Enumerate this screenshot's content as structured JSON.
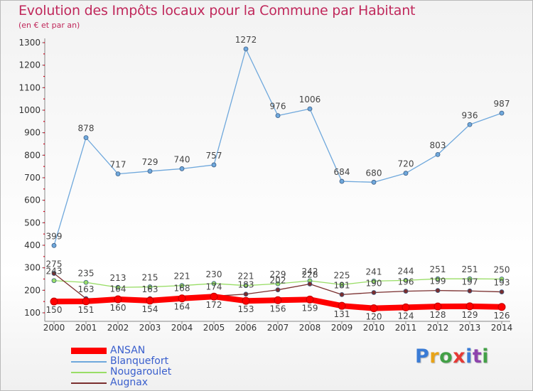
{
  "title": "Evolution des Impôts locaux pour la Commune par Habitant",
  "subtitle": "(en € et par an)",
  "logo": {
    "letters": [
      "P",
      "r",
      "o",
      "x",
      "i",
      "t",
      "i"
    ],
    "colors": [
      "#3a7bd5",
      "#e8a317",
      "#43a047",
      "#e53935",
      "#3a7bd5",
      "#8e44ad",
      "#43a047"
    ]
  },
  "chart_data": {
    "type": "line",
    "x": [
      "2000",
      "2001",
      "2002",
      "2003",
      "2004",
      "2005",
      "2006",
      "2007",
      "2008",
      "2009",
      "2010",
      "2011",
      "2012",
      "2013",
      "2014"
    ],
    "ylim": [
      100,
      1300
    ],
    "yticks": [
      "100",
      "200",
      "300",
      "400",
      "500",
      "600",
      "700",
      "800",
      "900",
      "1000",
      "1100",
      "1200",
      "1300"
    ],
    "grid": false,
    "legend_position": "bottom-left",
    "series": [
      {
        "name": "ANSAN",
        "color": "#ff0000",
        "values": [
          150,
          151,
          160,
          154,
          164,
          172,
          153,
          156,
          159,
          131,
          120,
          124,
          128,
          129,
          126
        ],
        "labels": [
          "150",
          "151",
          "160",
          "154",
          "164",
          "172",
          "153",
          "156",
          "159",
          "131",
          "120",
          "124",
          "128",
          "129",
          "126"
        ]
      },
      {
        "name": "Blanquefort",
        "color": "#6fa8dc",
        "values": [
          399,
          878,
          717,
          729,
          740,
          757,
          1272,
          976,
          1006,
          684,
          680,
          720,
          803,
          936,
          987
        ],
        "labels": [
          "399",
          "878",
          "717",
          "729",
          "740",
          "757",
          "1272",
          "976",
          "1006",
          "684",
          "680",
          "720",
          "803",
          "936",
          "987"
        ]
      },
      {
        "name": "Nougaroulet",
        "color": "#99dd66",
        "values": [
          243,
          235,
          213,
          215,
          221,
          230,
          221,
          229,
          242,
          225,
          241,
          244,
          251,
          251,
          250
        ],
        "labels": [
          "243",
          "235",
          "213",
          "215",
          "221",
          "230",
          "221",
          "229",
          "242",
          "225",
          "241",
          "244",
          "251",
          "251",
          "250"
        ]
      },
      {
        "name": "Augnax",
        "color": "#7a2e2e",
        "values": [
          275,
          163,
          164,
          163,
          168,
          174,
          183,
          202,
          228,
          181,
          190,
          196,
          199,
          197,
          193
        ],
        "labels": [
          "275",
          "163",
          "164",
          "163",
          "168",
          "174",
          "183",
          "202",
          "228",
          "181",
          "190",
          "196",
          "199",
          "197",
          "193"
        ]
      }
    ]
  }
}
